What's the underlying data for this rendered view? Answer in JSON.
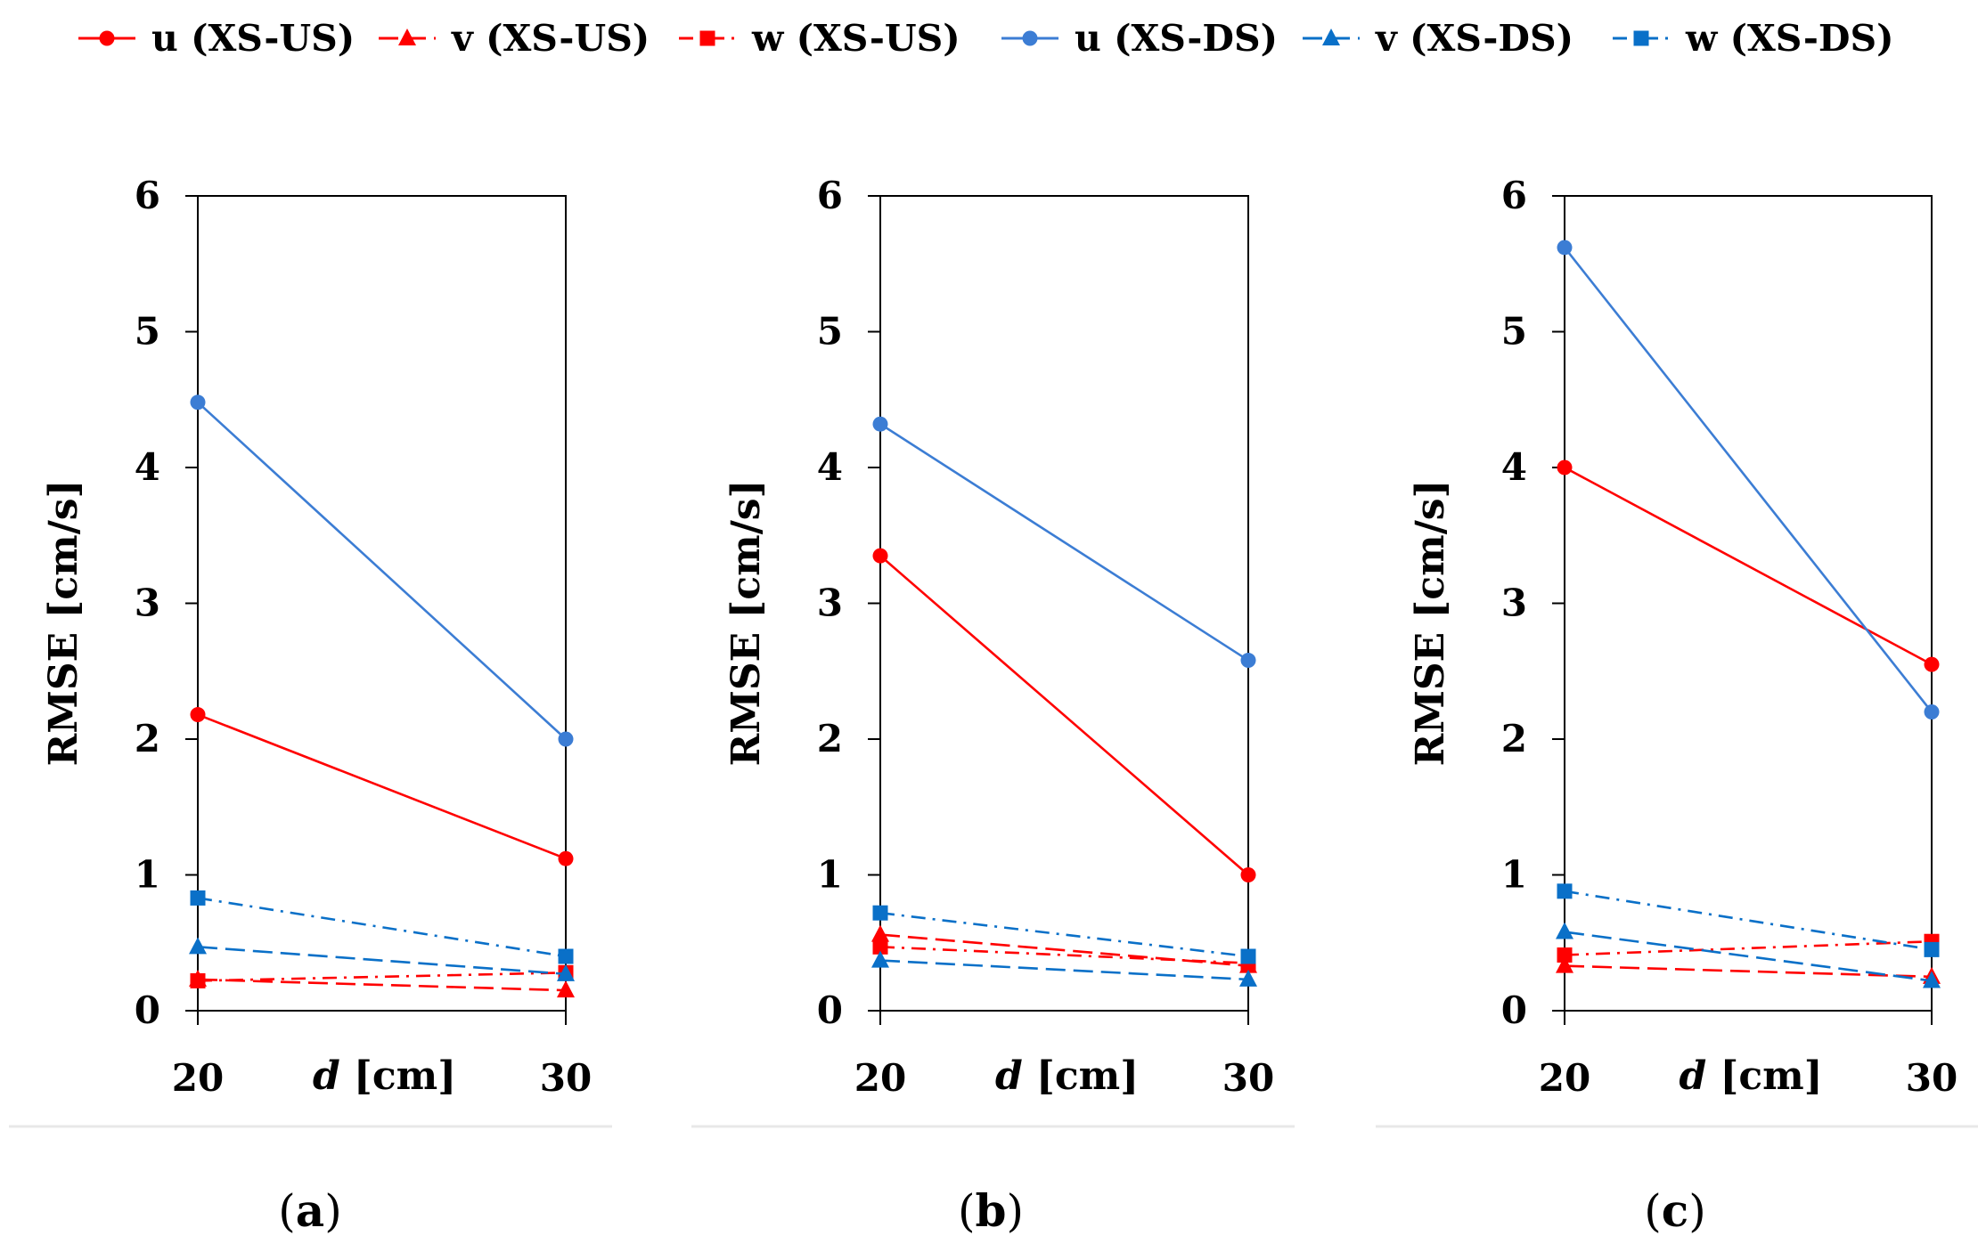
{
  "legend": [
    {
      "name": "u (XS-US)",
      "color": "#ff0000",
      "marker": "circle",
      "dash": "solid"
    },
    {
      "name": "v (XS-US)",
      "color": "#ff0000",
      "marker": "triangle",
      "dash": "longdash"
    },
    {
      "name": "w (XS-US)",
      "color": "#ff0000",
      "marker": "square",
      "dash": "dashdot"
    },
    {
      "name": "u (XS-DS)",
      "color": "#3c7dd4",
      "marker": "circle",
      "dash": "solid"
    },
    {
      "name": "v (XS-DS)",
      "color": "#0a70c8",
      "marker": "triangle",
      "dash": "longdash"
    },
    {
      "name": "w (XS-DS)",
      "color": "#0a70c8",
      "marker": "square",
      "dash": "dashdot"
    }
  ],
  "chart_data": [
    {
      "type": "line",
      "panel_label": "(a)",
      "x": [
        20,
        30
      ],
      "x_tick_labels": [
        "20",
        "30"
      ],
      "xlabel_italic": "d",
      "xlabel_unit": " [cm]",
      "ylabel": "RMSE [cm/s]",
      "ylim": [
        0,
        6
      ],
      "y_ticks": [
        "0",
        "1",
        "2",
        "3",
        "4",
        "5",
        "6"
      ],
      "series": [
        {
          "name": "u (XS-US)",
          "values": [
            2.18,
            1.12
          ]
        },
        {
          "name": "v (XS-US)",
          "values": [
            0.23,
            0.15
          ]
        },
        {
          "name": "w (XS-US)",
          "values": [
            0.22,
            0.28
          ]
        },
        {
          "name": "u (XS-DS)",
          "values": [
            4.48,
            2.0
          ]
        },
        {
          "name": "v (XS-DS)",
          "values": [
            0.47,
            0.27
          ]
        },
        {
          "name": "w (XS-DS)",
          "values": [
            0.83,
            0.4
          ]
        }
      ]
    },
    {
      "type": "line",
      "panel_label": "(b)",
      "x": [
        20,
        30
      ],
      "x_tick_labels": [
        "20",
        "30"
      ],
      "xlabel_italic": "d",
      "xlabel_unit": " [cm]",
      "ylabel": "RMSE [cm/s]",
      "ylim": [
        0,
        6
      ],
      "y_ticks": [
        "0",
        "1",
        "2",
        "3",
        "4",
        "5",
        "6"
      ],
      "series": [
        {
          "name": "u (XS-US)",
          "values": [
            3.35,
            1.0
          ]
        },
        {
          "name": "v (XS-US)",
          "values": [
            0.56,
            0.33
          ]
        },
        {
          "name": "w (XS-US)",
          "values": [
            0.47,
            0.35
          ]
        },
        {
          "name": "u (XS-DS)",
          "values": [
            4.32,
            2.58
          ]
        },
        {
          "name": "v (XS-DS)",
          "values": [
            0.37,
            0.23
          ]
        },
        {
          "name": "w (XS-DS)",
          "values": [
            0.72,
            0.4
          ]
        }
      ]
    },
    {
      "type": "line",
      "panel_label": "(c)",
      "x": [
        20,
        30
      ],
      "x_tick_labels": [
        "20",
        "30"
      ],
      "xlabel_italic": "d",
      "xlabel_unit": " [cm]",
      "ylabel": "RMSE [cm/s]",
      "ylim": [
        0,
        6
      ],
      "y_ticks": [
        "0",
        "1",
        "2",
        "3",
        "4",
        "5",
        "6"
      ],
      "series": [
        {
          "name": "u (XS-US)",
          "values": [
            4.0,
            2.55
          ]
        },
        {
          "name": "v (XS-US)",
          "values": [
            0.33,
            0.25
          ]
        },
        {
          "name": "w (XS-US)",
          "values": [
            0.41,
            0.51
          ]
        },
        {
          "name": "u (XS-DS)",
          "values": [
            5.62,
            2.2
          ]
        },
        {
          "name": "v (XS-DS)",
          "values": [
            0.58,
            0.22
          ]
        },
        {
          "name": "w (XS-DS)",
          "values": [
            0.88,
            0.45
          ]
        }
      ]
    }
  ]
}
